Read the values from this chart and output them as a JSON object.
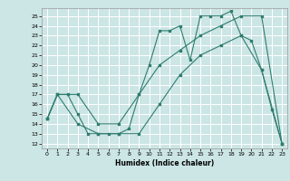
{
  "xlabel": "Humidex (Indice chaleur)",
  "ylabel": "",
  "bg_color": "#cce5e5",
  "grid_color": "#ffffff",
  "line_color": "#2e7d6e",
  "xlim": [
    -0.5,
    23.5
  ],
  "ylim": [
    11.5,
    25.8
  ],
  "yticks": [
    12,
    13,
    14,
    15,
    16,
    17,
    18,
    19,
    20,
    21,
    22,
    23,
    24,
    25
  ],
  "xticks": [
    0,
    1,
    2,
    3,
    4,
    5,
    6,
    7,
    8,
    9,
    10,
    11,
    12,
    13,
    14,
    15,
    16,
    17,
    18,
    19,
    20,
    21,
    22,
    23
  ],
  "line1": {
    "x": [
      0,
      1,
      2,
      3,
      4,
      5,
      6,
      7,
      8,
      9,
      10,
      11,
      12,
      13,
      14,
      15,
      16,
      17,
      18,
      19,
      20,
      21,
      22,
      23
    ],
    "y": [
      14.5,
      17,
      17,
      15,
      13,
      13,
      13,
      13,
      13.5,
      17,
      20,
      23.5,
      23.5,
      24,
      20.5,
      25,
      25,
      25,
      25.5,
      23,
      22.5,
      19.5,
      15.5,
      12
    ]
  },
  "line2": {
    "x": [
      0,
      1,
      3,
      5,
      7,
      9,
      11,
      13,
      15,
      17,
      19,
      21,
      23
    ],
    "y": [
      14.5,
      17,
      17,
      14,
      14,
      17,
      20,
      21.5,
      23,
      24,
      25,
      25,
      12
    ]
  },
  "line3": {
    "x": [
      0,
      1,
      3,
      5,
      7,
      9,
      11,
      13,
      15,
      17,
      19,
      21,
      23
    ],
    "y": [
      14.5,
      17,
      14,
      13,
      13,
      13,
      16,
      19,
      21,
      22,
      23,
      19.5,
      12
    ]
  }
}
